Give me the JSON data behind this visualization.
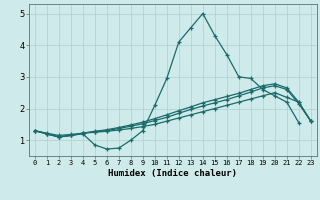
{
  "xlabel": "Humidex (Indice chaleur)",
  "x_values": [
    0,
    1,
    2,
    3,
    4,
    5,
    6,
    7,
    8,
    9,
    10,
    11,
    12,
    13,
    14,
    15,
    16,
    17,
    18,
    19,
    20,
    21,
    22,
    23
  ],
  "line1_x": [
    0,
    1,
    2,
    3,
    4,
    5,
    6,
    7,
    8,
    9,
    10,
    11,
    12,
    13,
    14,
    15,
    16,
    17,
    18,
    19,
    20,
    21,
    22
  ],
  "line1": [
    1.3,
    1.2,
    1.1,
    1.15,
    1.2,
    0.85,
    0.72,
    0.75,
    1.0,
    1.3,
    2.1,
    2.95,
    4.1,
    4.55,
    5.0,
    4.3,
    3.7,
    3.0,
    2.95,
    2.6,
    2.4,
    2.2,
    1.55
  ],
  "line2": [
    1.3,
    1.2,
    1.1,
    1.15,
    1.22,
    1.25,
    1.28,
    1.32,
    1.37,
    1.43,
    1.5,
    1.6,
    1.7,
    1.8,
    1.9,
    2.0,
    2.1,
    2.2,
    2.3,
    2.4,
    2.5,
    2.35,
    2.2,
    1.6
  ],
  "line3": [
    1.3,
    1.2,
    1.1,
    1.15,
    1.22,
    1.27,
    1.3,
    1.37,
    1.44,
    1.52,
    1.62,
    1.72,
    1.85,
    1.97,
    2.08,
    2.18,
    2.28,
    2.4,
    2.52,
    2.65,
    2.72,
    2.6,
    2.15,
    1.6
  ],
  "line4": [
    1.3,
    1.22,
    1.15,
    1.18,
    1.22,
    1.28,
    1.33,
    1.4,
    1.48,
    1.57,
    1.68,
    1.8,
    1.93,
    2.05,
    2.18,
    2.28,
    2.38,
    2.48,
    2.6,
    2.72,
    2.78,
    2.65,
    2.2,
    1.6
  ],
  "line_color": "#1a6b6b",
  "bg_color": "#ceeaea",
  "grid_color": "#aecece",
  "ylim": [
    0.5,
    5.3
  ],
  "xlim": [
    -0.5,
    23.5
  ],
  "yticks": [
    1,
    2,
    3,
    4,
    5
  ],
  "xticks": [
    0,
    1,
    2,
    3,
    4,
    5,
    6,
    7,
    8,
    9,
    10,
    11,
    12,
    13,
    14,
    15,
    16,
    17,
    18,
    19,
    20,
    21,
    22,
    23
  ]
}
